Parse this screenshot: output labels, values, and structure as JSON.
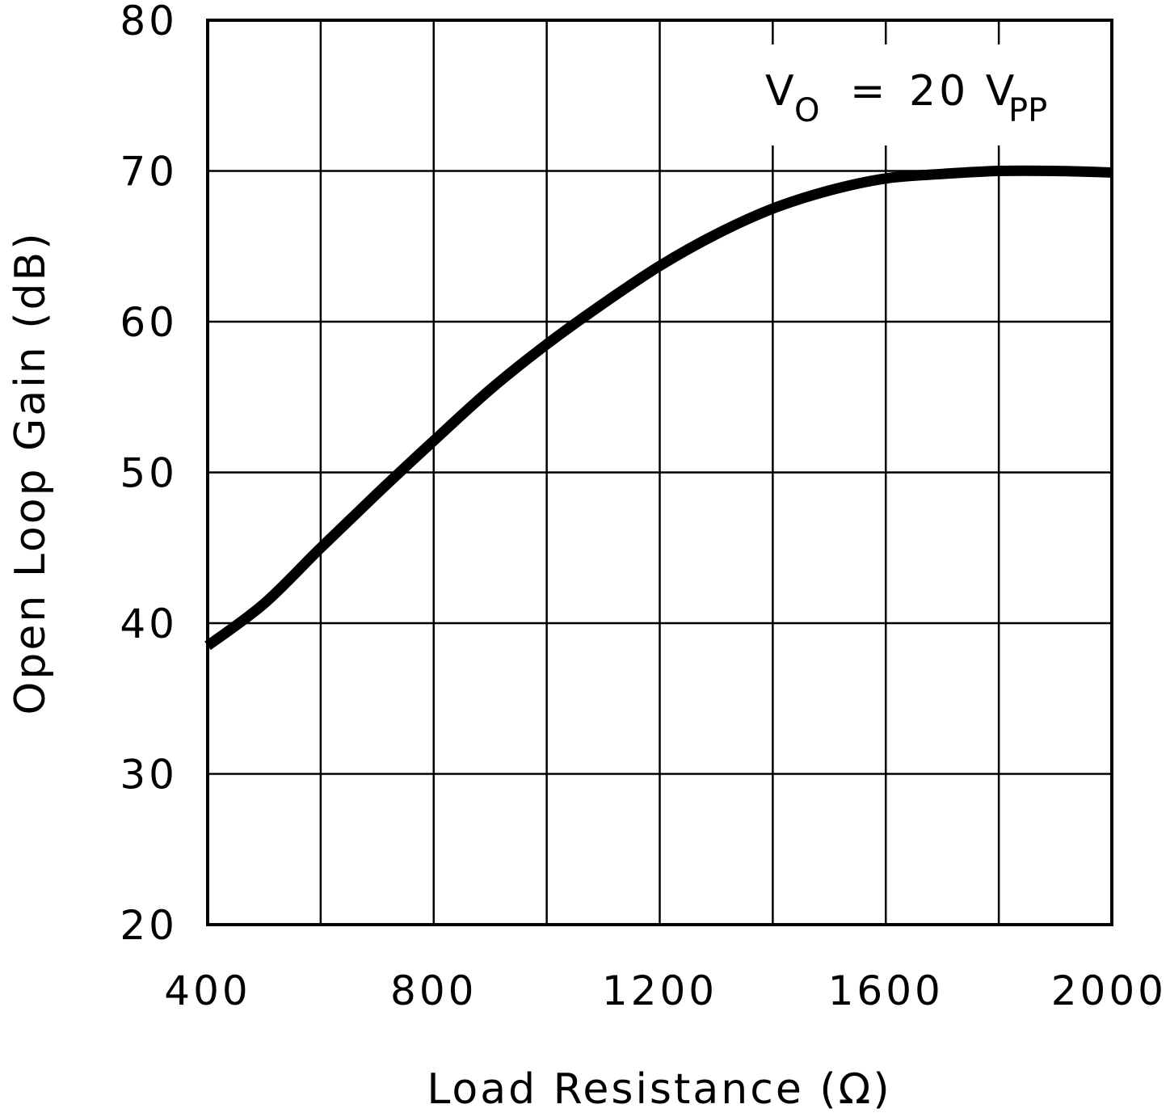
{
  "chart_data": {
    "type": "line",
    "title": "",
    "xlabel": "Load Resistance (Ω)",
    "ylabel": "Open Loop Gain (dB)",
    "xlim": [
      400,
      2000
    ],
    "ylim": [
      20,
      80
    ],
    "xticks": [
      400,
      800,
      1200,
      1600,
      2000
    ],
    "yticks": [
      20,
      30,
      40,
      50,
      60,
      70,
      80
    ],
    "x_gridlines": [
      400,
      600,
      800,
      1000,
      1200,
      1400,
      1600,
      1800,
      2000
    ],
    "y_gridlines": [
      20,
      30,
      40,
      50,
      60,
      70,
      80
    ],
    "grid": true,
    "annotation": {
      "v": "V",
      "v_sub": "O",
      "equals": "=",
      "value": "20 V",
      "value_sub": "PP"
    },
    "series": [
      {
        "color": "#000000",
        "x": [
          400,
          500,
          600,
          700,
          800,
          900,
          1000,
          1100,
          1200,
          1300,
          1400,
          1500,
          1600,
          1700,
          1800,
          1900,
          2000
        ],
        "y": [
          38.5,
          41.3,
          45.0,
          48.6,
          52.1,
          55.5,
          58.5,
          61.2,
          63.7,
          65.8,
          67.5,
          68.7,
          69.5,
          69.8,
          70.0,
          70.0,
          69.9
        ]
      }
    ]
  }
}
